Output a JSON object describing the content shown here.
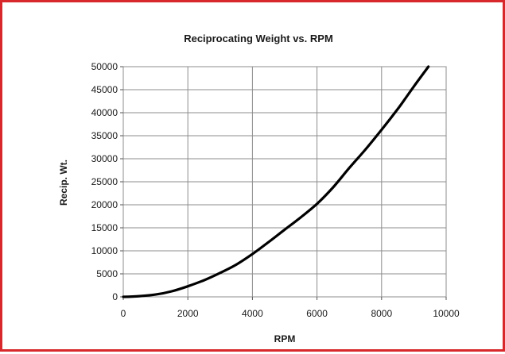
{
  "chart_data": {
    "type": "line",
    "title": "Reciprocating Weight vs. RPM",
    "xlabel": "RPM",
    "ylabel": "Recip. Wt.",
    "xlim": [
      0,
      10000
    ],
    "ylim": [
      0,
      50000
    ],
    "x_ticks": [
      0,
      2000,
      4000,
      6000,
      8000,
      10000
    ],
    "y_ticks": [
      0,
      5000,
      10000,
      15000,
      20000,
      25000,
      30000,
      35000,
      40000,
      45000,
      50000
    ],
    "grid": true,
    "legend": "none",
    "series": [
      {
        "color": "#000000",
        "x": [
          0,
          500,
          1000,
          1500,
          2000,
          2500,
          3000,
          3500,
          4000,
          4500,
          5000,
          5500,
          6000,
          6500,
          7000,
          7500,
          8000,
          8500,
          9000,
          9450
        ],
        "y": [
          0,
          150,
          500,
          1200,
          2300,
          3600,
          5200,
          7000,
          9300,
          11900,
          14600,
          17300,
          20200,
          23800,
          28000,
          32000,
          36300,
          40800,
          45700,
          50000
        ]
      }
    ]
  },
  "colors": {
    "frame_border": "#d8282b",
    "grid": "#8c8c8c",
    "series": "#000000"
  }
}
